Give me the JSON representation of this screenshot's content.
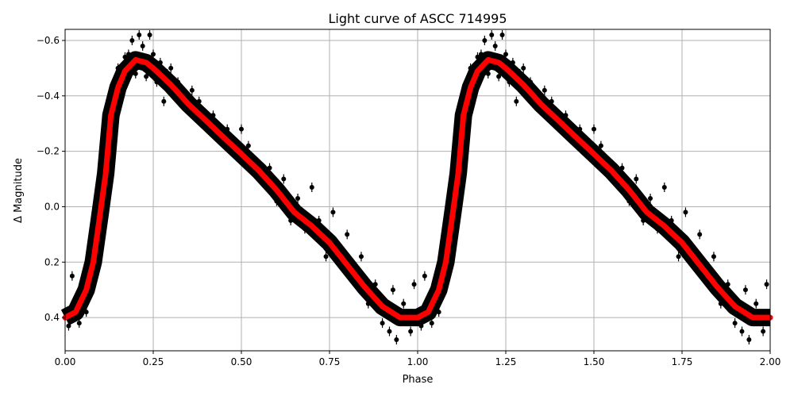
{
  "chart_data": {
    "type": "scatter",
    "title": "Light curve of ASCC 714995",
    "xlabel": "Phase",
    "ylabel": "Δ Magnitude",
    "xlim": [
      0,
      2
    ],
    "ylim": [
      0.52,
      -0.64
    ],
    "y_inverted": true,
    "grid": true,
    "xticks": [
      "0.00",
      "0.25",
      "0.50",
      "0.75",
      "1.00",
      "1.25",
      "1.50",
      "1.75",
      "2.00"
    ],
    "xtick_values": [
      0,
      0.25,
      0.5,
      0.75,
      1,
      1.25,
      1.5,
      1.75,
      2
    ],
    "yticks": [
      "−0.6",
      "−0.4",
      "−0.2",
      "0.0",
      "0.2",
      "0.4"
    ],
    "ytick_values": [
      -0.6,
      -0.4,
      -0.2,
      0,
      0.2,
      0.4
    ],
    "colors": {
      "observations": "#000000",
      "model": "#ff0000",
      "grid": "#b0b0b0"
    },
    "observations_phase_repeated": true,
    "observations": [
      [
        0.01,
        0.43
      ],
      [
        0.02,
        0.25
      ],
      [
        0.03,
        0.36
      ],
      [
        0.04,
        0.42
      ],
      [
        0.05,
        0.28
      ],
      [
        0.06,
        0.38
      ],
      [
        0.07,
        0.22
      ],
      [
        0.08,
        0.08
      ],
      [
        0.09,
        0.12
      ],
      [
        0.1,
        0.08
      ],
      [
        0.11,
        -0.05
      ],
      [
        0.12,
        -0.22
      ],
      [
        0.13,
        -0.28
      ],
      [
        0.14,
        -0.4
      ],
      [
        0.15,
        -0.5
      ],
      [
        0.16,
        -0.47
      ],
      [
        0.17,
        -0.54
      ],
      [
        0.18,
        -0.55
      ],
      [
        0.19,
        -0.6
      ],
      [
        0.2,
        -0.48
      ],
      [
        0.21,
        -0.62
      ],
      [
        0.22,
        -0.58
      ],
      [
        0.23,
        -0.47
      ],
      [
        0.24,
        -0.62
      ],
      [
        0.25,
        -0.55
      ],
      [
        0.26,
        -0.45
      ],
      [
        0.27,
        -0.52
      ],
      [
        0.28,
        -0.38
      ],
      [
        0.29,
        -0.48
      ],
      [
        0.3,
        -0.5
      ],
      [
        0.32,
        -0.45
      ],
      [
        0.34,
        -0.4
      ],
      [
        0.36,
        -0.42
      ],
      [
        0.38,
        -0.38
      ],
      [
        0.4,
        -0.3
      ],
      [
        0.42,
        -0.33
      ],
      [
        0.44,
        -0.26
      ],
      [
        0.46,
        -0.28
      ],
      [
        0.48,
        -0.23
      ],
      [
        0.5,
        -0.28
      ],
      [
        0.52,
        -0.22
      ],
      [
        0.54,
        -0.15
      ],
      [
        0.56,
        -0.12
      ],
      [
        0.58,
        -0.14
      ],
      [
        0.6,
        -0.02
      ],
      [
        0.62,
        -0.1
      ],
      [
        0.64,
        0.05
      ],
      [
        0.66,
        -0.03
      ],
      [
        0.68,
        0.08
      ],
      [
        0.7,
        -0.07
      ],
      [
        0.72,
        0.05
      ],
      [
        0.74,
        0.18
      ],
      [
        0.76,
        0.02
      ],
      [
        0.78,
        0.2
      ],
      [
        0.8,
        0.1
      ],
      [
        0.82,
        0.25
      ],
      [
        0.84,
        0.18
      ],
      [
        0.86,
        0.35
      ],
      [
        0.88,
        0.28
      ],
      [
        0.9,
        0.42
      ],
      [
        0.92,
        0.45
      ],
      [
        0.93,
        0.3
      ],
      [
        0.94,
        0.48
      ],
      [
        0.96,
        0.35
      ],
      [
        0.98,
        0.45
      ],
      [
        0.99,
        0.28
      ]
    ],
    "model": {
      "phase": [
        0,
        0.03,
        0.06,
        0.08,
        0.1,
        0.115,
        0.13,
        0.15,
        0.17,
        0.2,
        0.23,
        0.25,
        0.3,
        0.35,
        0.4,
        0.45,
        0.5,
        0.55,
        0.6,
        0.65,
        0.7,
        0.75,
        0.8,
        0.85,
        0.9,
        0.95,
        1.0
      ],
      "magnitude": [
        0.4,
        0.38,
        0.3,
        0.2,
        0.02,
        -0.12,
        -0.33,
        -0.43,
        -0.49,
        -0.53,
        -0.52,
        -0.5,
        -0.44,
        -0.37,
        -0.31,
        -0.25,
        -0.19,
        -0.13,
        -0.06,
        0.02,
        0.07,
        0.13,
        0.21,
        0.29,
        0.36,
        0.4,
        0.4
      ]
    }
  }
}
